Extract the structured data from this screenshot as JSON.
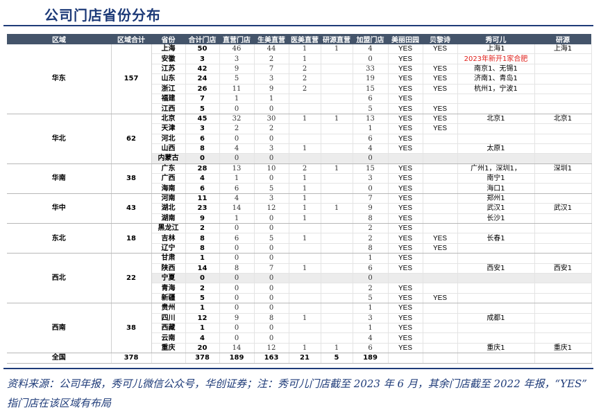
{
  "title": "公司门店省份分布",
  "headers": [
    "区域",
    "区域合计",
    "省份",
    "合计门店",
    "直营门店",
    "生美直营",
    "医美直营",
    "研源直营",
    "加盟门店",
    "美丽田园",
    "贝黎诗",
    "秀可儿",
    "研源"
  ],
  "regions": [
    {
      "name": "华东",
      "total": "157",
      "rows": [
        [
          "上海",
          "50",
          "46",
          "44",
          "1",
          "1",
          "4",
          "YES",
          "YES",
          "上海1",
          "上海1"
        ],
        [
          "安徽",
          "3",
          "3",
          "2",
          "1",
          "",
          "0",
          "YES",
          "",
          "2023年新开1家合肥",
          ""
        ],
        [
          "江苏",
          "42",
          "9",
          "7",
          "2",
          "",
          "33",
          "YES",
          "YES",
          "南京1、无锡1",
          ""
        ],
        [
          "山东",
          "24",
          "5",
          "3",
          "2",
          "",
          "19",
          "YES",
          "YES",
          "济南1、青岛1",
          ""
        ],
        [
          "浙江",
          "26",
          "11",
          "9",
          "2",
          "",
          "15",
          "YES",
          "YES",
          "杭州1，宁波1",
          ""
        ],
        [
          "福建",
          "7",
          "1",
          "1",
          "",
          "",
          "6",
          "YES",
          "",
          "",
          ""
        ],
        [
          "江西",
          "5",
          "0",
          "0",
          "",
          "",
          "5",
          "YES",
          "YES",
          "",
          ""
        ]
      ]
    },
    {
      "name": "华北",
      "total": "62",
      "rows": [
        [
          "北京",
          "45",
          "32",
          "30",
          "1",
          "1",
          "13",
          "YES",
          "YES",
          "北京1",
          "北京1"
        ],
        [
          "天津",
          "3",
          "2",
          "2",
          "",
          "",
          "1",
          "YES",
          "YES",
          "",
          ""
        ],
        [
          "河北",
          "6",
          "0",
          "0",
          "",
          "",
          "6",
          "YES",
          "",
          "",
          ""
        ],
        [
          "山西",
          "8",
          "4",
          "3",
          "1",
          "",
          "4",
          "YES",
          "",
          "太原1",
          ""
        ],
        [
          "内蒙古",
          "0",
          "0",
          "0",
          "",
          "",
          "0",
          "",
          "",
          "",
          ""
        ]
      ]
    },
    {
      "name": "华南",
      "total": "38",
      "rows": [
        [
          "广东",
          "28",
          "13",
          "10",
          "2",
          "1",
          "15",
          "YES",
          "",
          "广州1，深圳1，",
          "深圳1"
        ],
        [
          "广西",
          "4",
          "1",
          "0",
          "1",
          "",
          "3",
          "YES",
          "",
          "南宁1",
          ""
        ],
        [
          "海南",
          "6",
          "6",
          "5",
          "1",
          "",
          "0",
          "YES",
          "",
          "海口1",
          ""
        ]
      ]
    },
    {
      "name": "华中",
      "total": "43",
      "rows": [
        [
          "河南",
          "11",
          "4",
          "3",
          "1",
          "",
          "7",
          "YES",
          "",
          "郑州1",
          ""
        ],
        [
          "湖北",
          "23",
          "14",
          "12",
          "1",
          "1",
          "9",
          "YES",
          "",
          "武汉1",
          "武汉1"
        ],
        [
          "湖南",
          "9",
          "1",
          "0",
          "1",
          "",
          "8",
          "YES",
          "",
          "长沙1",
          ""
        ]
      ]
    },
    {
      "name": "东北",
      "total": "18",
      "rows": [
        [
          "黑龙江",
          "2",
          "0",
          "0",
          "",
          "",
          "2",
          "YES",
          "",
          "",
          ""
        ],
        [
          "吉林",
          "8",
          "6",
          "5",
          "1",
          "",
          "2",
          "YES",
          "YES",
          "长春1",
          ""
        ],
        [
          "辽宁",
          "8",
          "0",
          "0",
          "",
          "",
          "8",
          "YES",
          "YES",
          "",
          ""
        ]
      ]
    },
    {
      "name": "西北",
      "total": "22",
      "rows": [
        [
          "甘肃",
          "1",
          "0",
          "0",
          "",
          "",
          "1",
          "YES",
          "",
          "",
          ""
        ],
        [
          "陕西",
          "14",
          "8",
          "7",
          "1",
          "",
          "6",
          "YES",
          "",
          "西安1",
          "西安1"
        ],
        [
          "宁夏",
          "0",
          "0",
          "0",
          "",
          "",
          "0",
          "",
          "",
          "",
          ""
        ],
        [
          "青海",
          "2",
          "0",
          "0",
          "",
          "",
          "2",
          "YES",
          "",
          "",
          ""
        ],
        [
          "新疆",
          "5",
          "0",
          "0",
          "",
          "",
          "5",
          "YES",
          "YES",
          "",
          ""
        ]
      ]
    },
    {
      "name": "西南",
      "total": "38",
      "rows": [
        [
          "贵州",
          "1",
          "0",
          "0",
          "",
          "",
          "1",
          "YES",
          "",
          "",
          ""
        ],
        [
          "四川",
          "12",
          "9",
          "8",
          "1",
          "",
          "3",
          "YES",
          "",
          "成都1",
          ""
        ],
        [
          "西藏",
          "1",
          "0",
          "0",
          "",
          "",
          "1",
          "YES",
          "",
          "",
          ""
        ],
        [
          "云南",
          "4",
          "0",
          "0",
          "",
          "",
          "4",
          "YES",
          "",
          "",
          ""
        ],
        [
          "重庆",
          "20",
          "14",
          "12",
          "1",
          "1",
          "6",
          "YES",
          "",
          "重庆1",
          "重庆1"
        ]
      ]
    }
  ],
  "total": {
    "label": "全国",
    "region_total": "378",
    "cells": [
      "",
      "378",
      "189",
      "163",
      "21",
      "5",
      "189",
      "",
      "",
      "",
      ""
    ]
  },
  "footer": "资料来源：公司年报，秀可儿微信公众号，华创证券；注：秀可儿门店截至 2023 年 6 月，其余门店截至 2022 年报，“YES” 指门店在该区域有布局",
  "colors": {
    "title": "#1d3a78",
    "header_bg": "#44546a",
    "note_red": "#e0201b"
  }
}
